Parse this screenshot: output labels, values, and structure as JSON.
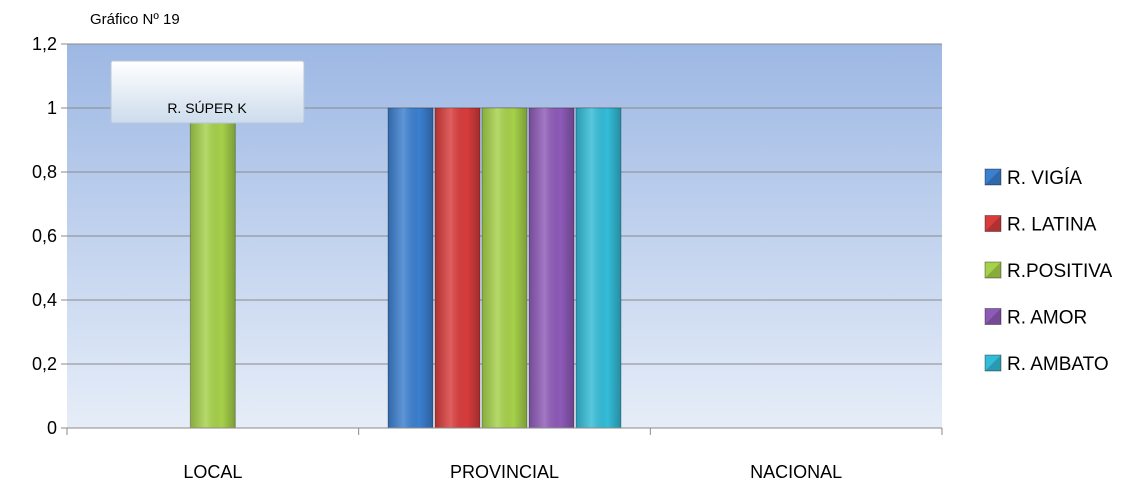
{
  "chart_data": {
    "type": "bar",
    "title": "Gráfico Nº 19",
    "categories": [
      "LOCAL",
      "PROVINCIAL",
      "NACIONAL"
    ],
    "ylim": [
      0,
      1.2
    ],
    "y_ticks": [
      "0",
      "0,2",
      "0,4",
      "0,6",
      "0,8",
      "1",
      "1,2"
    ],
    "grid": true,
    "legend_position": "right",
    "series": [
      {
        "name": "R. VIGÍA",
        "color": "#3b7fcf",
        "values": [
          0,
          1,
          0
        ]
      },
      {
        "name": "R. LATINA",
        "color": "#d83c3c",
        "values": [
          0,
          1,
          0
        ]
      },
      {
        "name": "R.POSITIVA",
        "color": "#a6d14a",
        "values": [
          1,
          1,
          0
        ]
      },
      {
        "name": "R. AMOR",
        "color": "#8e5ab8",
        "values": [
          0,
          1,
          0
        ]
      },
      {
        "name": "R. AMBATO",
        "color": "#33bcd8",
        "values": [
          0,
          1,
          0
        ]
      }
    ],
    "annotation": {
      "text": "R. SÚPER K",
      "category": "LOCAL",
      "series": "R.POSITIVA"
    }
  }
}
